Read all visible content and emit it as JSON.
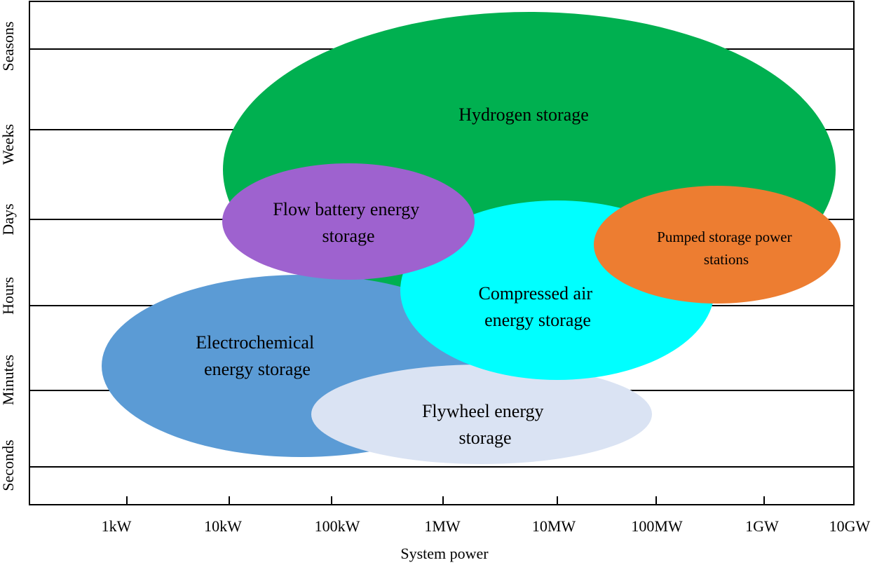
{
  "diagram": {
    "x_axis": {
      "title": "System power",
      "ticks": [
        "1kW",
        "10kW",
        "100kW",
        "1MW",
        "10MW",
        "100MW",
        "1GW",
        "10GW"
      ]
    },
    "y_axis": {
      "bands": [
        "Seasons",
        "Weeks",
        "Days",
        "Hours",
        "Minutes",
        "Seconds"
      ]
    },
    "technologies": [
      {
        "id": "hydrogen",
        "label_lines": [
          "Hydrogen storage"
        ],
        "color": "#00b050"
      },
      {
        "id": "electrochemical",
        "label_lines": [
          "Electrochemical",
          "energy storage"
        ],
        "color": "#5b9bd5"
      },
      {
        "id": "flywheel",
        "label_lines": [
          "Flywheel energy",
          "storage"
        ],
        "color": "#dae3f3"
      },
      {
        "id": "compressed-air",
        "label_lines": [
          "Compressed air",
          "energy storage"
        ],
        "color": "#00ffff"
      },
      {
        "id": "flow-battery",
        "label_lines": [
          "Flow battery energy",
          "storage"
        ],
        "color": "#9e62cf"
      },
      {
        "id": "pumped-storage",
        "label_lines": [
          "Pumped storage power",
          "stations"
        ],
        "color": "#ed7d31"
      }
    ]
  }
}
